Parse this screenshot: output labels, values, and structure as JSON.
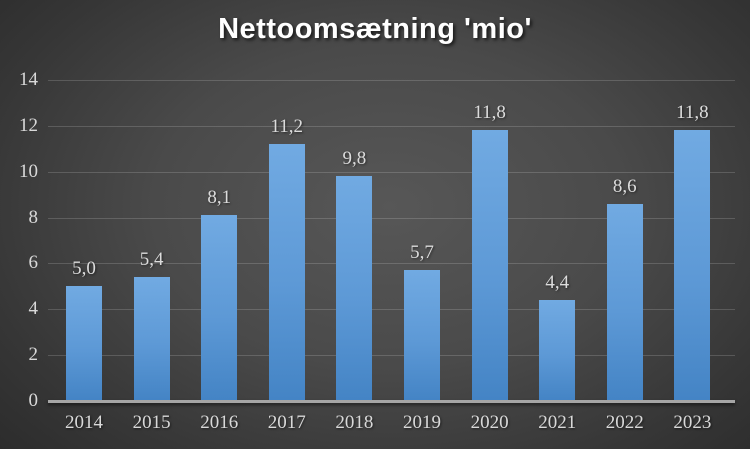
{
  "chart_data": {
    "type": "bar",
    "title": "Nettoomsætning 'mio'",
    "categories": [
      "2014",
      "2015",
      "2016",
      "2017",
      "2018",
      "2019",
      "2020",
      "2021",
      "2022",
      "2023"
    ],
    "values": [
      5.0,
      5.4,
      8.1,
      11.2,
      9.8,
      5.7,
      11.8,
      4.4,
      8.6,
      11.8
    ],
    "value_labels": [
      "5,0",
      "5,4",
      "8,1",
      "11,2",
      "9,8",
      "5,7",
      "11,8",
      "4,4",
      "8,6",
      "11,8"
    ],
    "xlabel": "",
    "ylabel": "",
    "ylim": [
      0,
      14
    ],
    "yticks": [
      0,
      2,
      4,
      6,
      8,
      10,
      12,
      14
    ],
    "ytick_labels": [
      "0",
      "2",
      "4",
      "6",
      "8",
      "10",
      "12",
      "14"
    ],
    "grid": true,
    "legend_position": "none",
    "decimal_separator": ",",
    "colors": {
      "bar_top": "#71aae2",
      "bar_bottom": "#4484c5",
      "background_center": "#575757",
      "background_edge": "#242424",
      "gridline": "rgba(255,255,255,0.16)",
      "axis_line": "#a6a6a6",
      "tick_label": "#d9d9d9",
      "data_label": "#dcdcdc",
      "title": "#ffffff"
    }
  }
}
